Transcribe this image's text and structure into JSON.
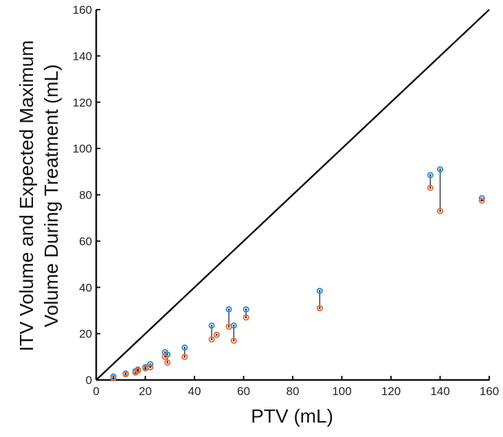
{
  "chart_data": {
    "type": "scatter",
    "title": "",
    "xlabel": "PTV (mL)",
    "ylabel_lines": [
      "ITV Volume and Expected Maximum",
      "Volume During Treatment (mL)"
    ],
    "xlim": [
      0,
      160
    ],
    "ylim": [
      0,
      160
    ],
    "xticks": [
      0,
      20,
      40,
      60,
      80,
      100,
      120,
      140,
      160
    ],
    "yticks": [
      0,
      20,
      40,
      60,
      80,
      100,
      120,
      140,
      160
    ],
    "grid": false,
    "legend": "none",
    "reference_line": {
      "from": [
        0,
        0
      ],
      "to": [
        160,
        160
      ],
      "label": ""
    },
    "x": [
      7,
      12,
      16,
      17,
      20,
      22,
      28,
      29,
      36,
      47,
      49,
      54,
      56,
      61,
      91,
      136,
      140,
      157
    ],
    "series": [
      {
        "marker": "blue-open-circle",
        "color": "#2f8fd8",
        "values": [
          1.5,
          2.8,
          3.8,
          4.5,
          5.5,
          6.8,
          12,
          11,
          14,
          23.5,
          19.5,
          30.5,
          23.5,
          30.5,
          38.5,
          88.5,
          91,
          78.5
        ]
      },
      {
        "marker": "orange-open-circle",
        "color": "#e8703c",
        "values": [
          0.8,
          2.5,
          3.2,
          4,
          5,
          5.5,
          10,
          7.5,
          10,
          17.5,
          19.5,
          23,
          17,
          27,
          31,
          83,
          73,
          77.5
        ]
      }
    ],
    "colors": {
      "axis": "#111111",
      "connector": "#222222",
      "center_dot": "#111111"
    }
  }
}
